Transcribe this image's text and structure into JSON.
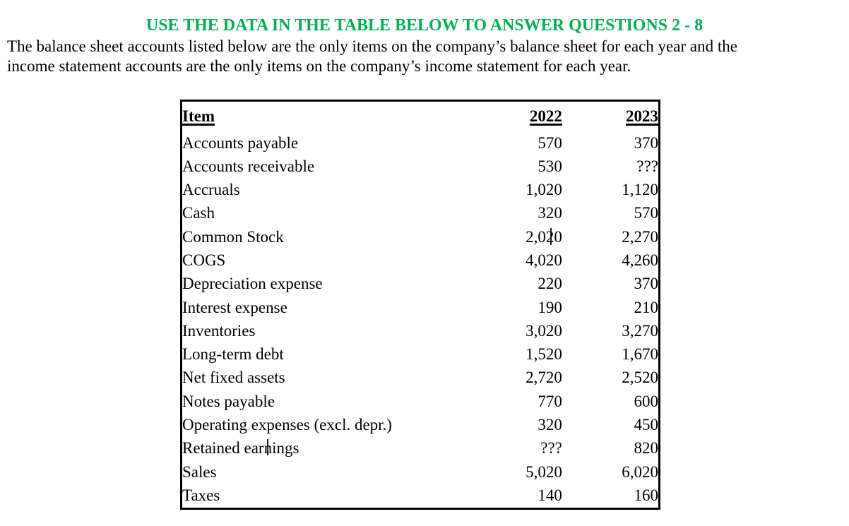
{
  "document": {
    "title": "USE THE DATA IN THE TABLE BELOW TO ANSWER QUESTIONS 2 - 8",
    "intro_lines": [
      "The balance sheet accounts listed below are the only items on the company’s balance sheet for each year and the",
      "income statement accounts are the only items on the company’s income statement for each year."
    ]
  },
  "colors": {
    "title_green": "#00B050",
    "text": "#000000",
    "table_border": "#000000"
  },
  "table": {
    "headers": {
      "item": "Item",
      "y2022": "2022",
      "y2023": "2023"
    },
    "rows": [
      {
        "item": "Accounts payable",
        "v2022": "570",
        "v2023": "370"
      },
      {
        "item": "Accounts receivable",
        "v2022": "530",
        "v2023": "???"
      },
      {
        "item": "Accruals",
        "v2022": "1,020",
        "v2023": "1,120"
      },
      {
        "item": "Cash",
        "v2022": "320",
        "v2023": "570"
      },
      {
        "item": "Common Stock",
        "v2022": "2,020",
        "v2023": "2,270",
        "caret": "v2022"
      },
      {
        "item": "COGS",
        "v2022": "4,020",
        "v2023": "4,260"
      },
      {
        "item": "Depreciation expense",
        "v2022": "220",
        "v2023": "370"
      },
      {
        "item": "Interest expense",
        "v2022": "190",
        "v2023": "210"
      },
      {
        "item": "Inventories",
        "v2022": "3,020",
        "v2023": "3,270"
      },
      {
        "item": "Long-term debt",
        "v2022": "1,520",
        "v2023": "1,670"
      },
      {
        "item": "Net fixed assets",
        "v2022": "2,720",
        "v2023": "2,520"
      },
      {
        "item": "Notes payable",
        "v2022": "770",
        "v2023": "600"
      },
      {
        "item": "Operating expenses (excl. depr.)",
        "v2022": "320",
        "v2023": "450"
      },
      {
        "item": "Retained earnings",
        "v2022": "???",
        "v2023": "820",
        "caret": "item"
      },
      {
        "item": "Sales",
        "v2022": "5,020",
        "v2023": "6,020"
      },
      {
        "item": "Taxes",
        "v2022": "140",
        "v2023": "160"
      }
    ]
  }
}
